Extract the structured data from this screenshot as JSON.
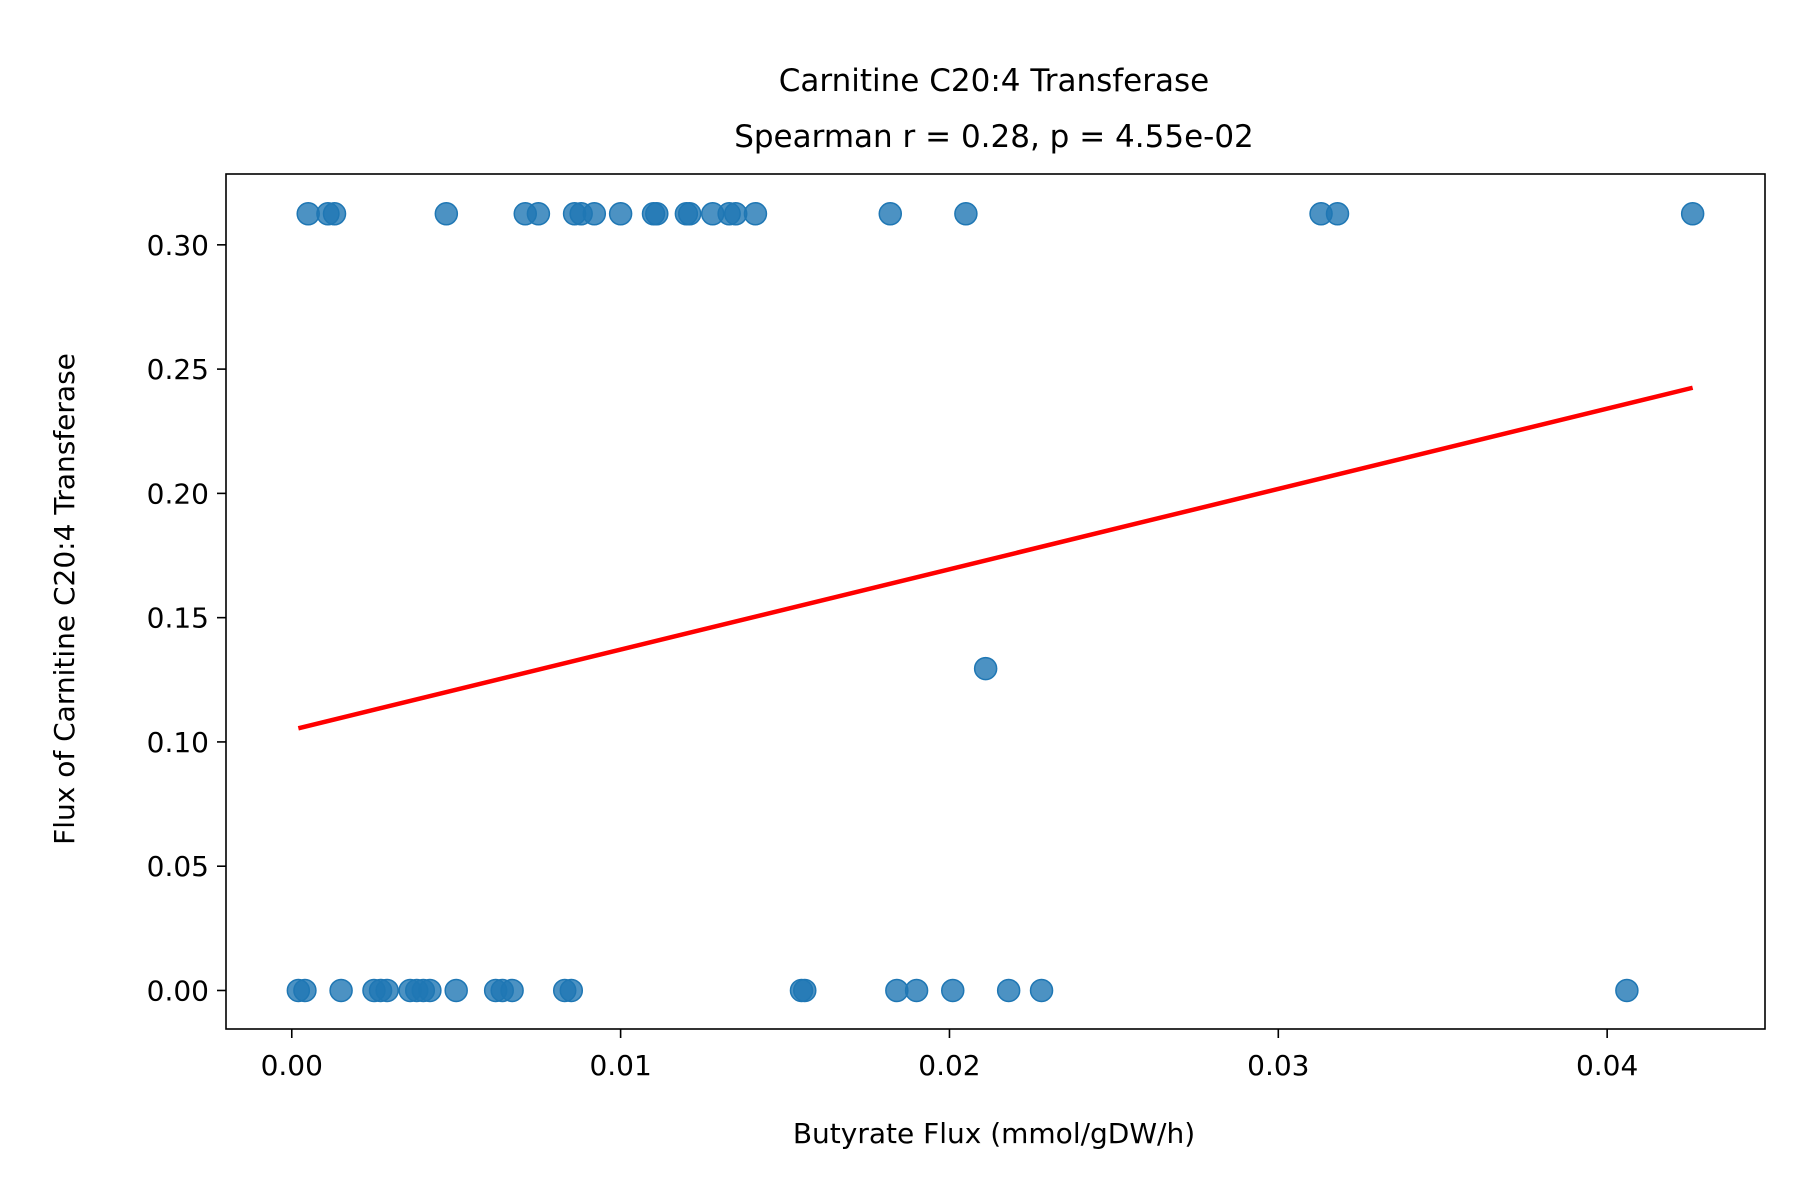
{
  "chart_data": {
    "type": "scatter",
    "title": "Carnitine C20:4 Transferase",
    "subtitle": "Spearman r = 0.28, p = 4.55e-02",
    "xlabel": "Butyrate Flux (mmol/gDW/h)",
    "ylabel": "Flux of Carnitine C20:4 Transferase",
    "xlim": [
      -0.002,
      0.0448
    ],
    "ylim": [
      -0.0155,
      0.3285
    ],
    "xticks": [
      "0.00",
      "0.01",
      "0.02",
      "0.03",
      "0.04"
    ],
    "yticks": [
      "0.00",
      "0.05",
      "0.10",
      "0.15",
      "0.20",
      "0.25",
      "0.30"
    ],
    "grid": false,
    "legend": "none",
    "series": [
      {
        "marker_color": "#1f77b4",
        "points": [
          [
            0.0005,
            0.3125
          ],
          [
            0.0011,
            0.3125
          ],
          [
            0.0013,
            0.3125
          ],
          [
            0.0047,
            0.3125
          ],
          [
            0.0071,
            0.3125
          ],
          [
            0.0075,
            0.3125
          ],
          [
            0.0086,
            0.3125
          ],
          [
            0.0088,
            0.3125
          ],
          [
            0.0092,
            0.3125
          ],
          [
            0.01,
            0.3125
          ],
          [
            0.011,
            0.3125
          ],
          [
            0.0111,
            0.3125
          ],
          [
            0.012,
            0.3125
          ],
          [
            0.0121,
            0.3125
          ],
          [
            0.0128,
            0.3125
          ],
          [
            0.0133,
            0.3125
          ],
          [
            0.0135,
            0.3125
          ],
          [
            0.0141,
            0.3125
          ],
          [
            0.0182,
            0.3125
          ],
          [
            0.0205,
            0.3125
          ],
          [
            0.0313,
            0.3125
          ],
          [
            0.0318,
            0.3125
          ],
          [
            0.0426,
            0.3125
          ],
          [
            0.0211,
            0.1295
          ],
          [
            0.0002,
            0.0
          ],
          [
            0.0004,
            0.0
          ],
          [
            0.0015,
            0.0
          ],
          [
            0.0025,
            0.0
          ],
          [
            0.0027,
            0.0
          ],
          [
            0.0029,
            0.0
          ],
          [
            0.0036,
            0.0
          ],
          [
            0.0038,
            0.0
          ],
          [
            0.004,
            0.0
          ],
          [
            0.0042,
            0.0
          ],
          [
            0.005,
            0.0
          ],
          [
            0.0062,
            0.0
          ],
          [
            0.0064,
            0.0
          ],
          [
            0.0067,
            0.0
          ],
          [
            0.0083,
            0.0
          ],
          [
            0.0085,
            0.0
          ],
          [
            0.0155,
            0.0
          ],
          [
            0.0156,
            0.0
          ],
          [
            0.0184,
            0.0
          ],
          [
            0.019,
            0.0
          ],
          [
            0.0201,
            0.0
          ],
          [
            0.0218,
            0.0
          ],
          [
            0.0228,
            0.0
          ],
          [
            0.0406,
            0.0
          ]
        ]
      }
    ],
    "trend_line": {
      "color": "#ff0000",
      "points": [
        [
          0.0002,
          0.1055
        ],
        [
          0.0426,
          0.2425
        ]
      ]
    }
  }
}
